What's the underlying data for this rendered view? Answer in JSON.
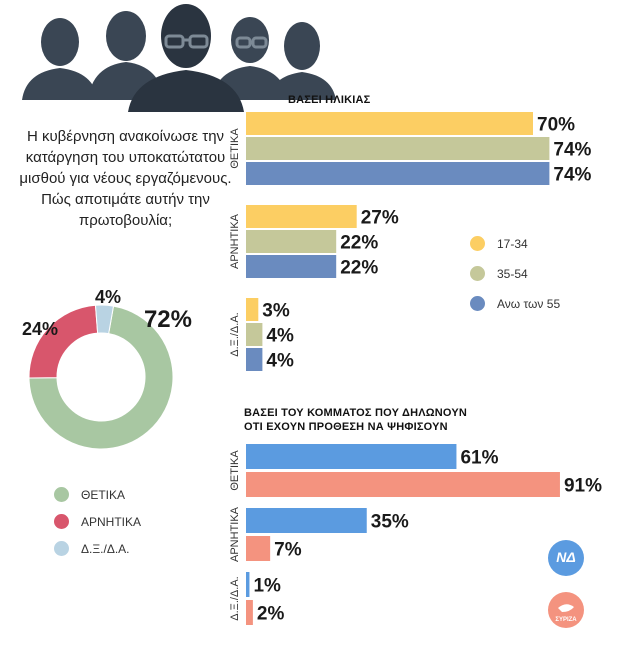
{
  "question": "Η κυβέρνηση ανακοίνωσε την κατάργηση του υποκατώτατου μισθού για νέους εργαζόμενους. Πώς αποτιμάτε αυτήν την πρωτοβουλία;",
  "colors": {
    "positive": "#a8c7a2",
    "negative": "#d8566c",
    "dk": "#b9d3e3",
    "age_17_34": "#fcce63",
    "age_35_54": "#c5c89a",
    "age_55_plus": "#6a8bbf",
    "nd": "#5b9be0",
    "syriza": "#f4937f"
  },
  "parties": {
    "nd_badge": "ΝΔ",
    "syriza_badge": "ΣΥΡΙΖΑ"
  },
  "chart_data": [
    {
      "type": "pie",
      "subtype": "donut",
      "categories": [
        "ΘΕΤΙΚΑ",
        "ΑΡΝΗΤΙΚΑ",
        "Δ.Ξ./Δ.Α."
      ],
      "values": [
        72,
        24,
        4
      ],
      "labels": [
        "72%",
        "24%",
        "4%"
      ],
      "legend": [
        "ΘΕΤΙΚΑ",
        "ΑΡΝΗΤΙΚΑ",
        "Δ.Ξ./Δ.Α."
      ]
    },
    {
      "type": "bar",
      "orientation": "horizontal",
      "title": "ΒΑΣΕΙ ΗΛΙΚΙΑΣ",
      "categories": [
        "ΘΕΤΙΚΑ",
        "ΑΡΝΗΤΙΚΑ",
        "Δ.Ξ./Δ.Α."
      ],
      "series": [
        {
          "name": "17-34",
          "values": [
            70,
            27,
            3
          ]
        },
        {
          "name": "35-54",
          "values": [
            74,
            22,
            4
          ]
        },
        {
          "name": "Ανω των 55",
          "values": [
            74,
            22,
            4
          ]
        }
      ],
      "legend_position": "right"
    },
    {
      "type": "bar",
      "orientation": "horizontal",
      "title": "ΒΑΣΕΙ ΤΟΥ ΚΟΜΜΑΤΟΣ ΠΟΥ ΔΗΛΩΝΟΥΝ ΟΤΙ ΕΧΟΥΝ ΠΡΟΘΕΣΗ ΝΑ ΨΗΦΙΣΟΥΝ",
      "title_lines": [
        "ΒΑΣΕΙ ΤΟΥ ΚΟΜΜΑΤΟΣ ΠΟΥ ΔΗΛΩΝΟΥΝ",
        "ΟΤΙ ΕΧΟΥΝ ΠΡΟΘΕΣΗ ΝΑ ΨΗΦΙΣΟΥΝ"
      ],
      "categories": [
        "ΘΕΤΙΚΑ",
        "ΑΡΝΗΤΙΚΑ",
        "Δ.Ξ./Δ.Α."
      ],
      "series": [
        {
          "name": "ΝΔ",
          "values": [
            61,
            35,
            1
          ]
        },
        {
          "name": "ΣΥΡΙΖΑ",
          "values": [
            91,
            7,
            2
          ]
        }
      ]
    }
  ]
}
